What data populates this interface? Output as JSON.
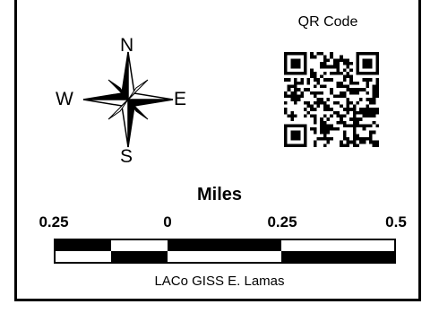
{
  "compass": {
    "north": "N",
    "south": "S",
    "east": "E",
    "west": "W",
    "icon": "compass-rose-icon"
  },
  "qr": {
    "title": "QR Code",
    "icon": "qr-code-icon"
  },
  "scale": {
    "units": "Miles",
    "tick_labels": [
      "0.25",
      "0",
      "0.25",
      "0.5"
    ]
  },
  "credit": "LACo  GISS  E. Lamas"
}
